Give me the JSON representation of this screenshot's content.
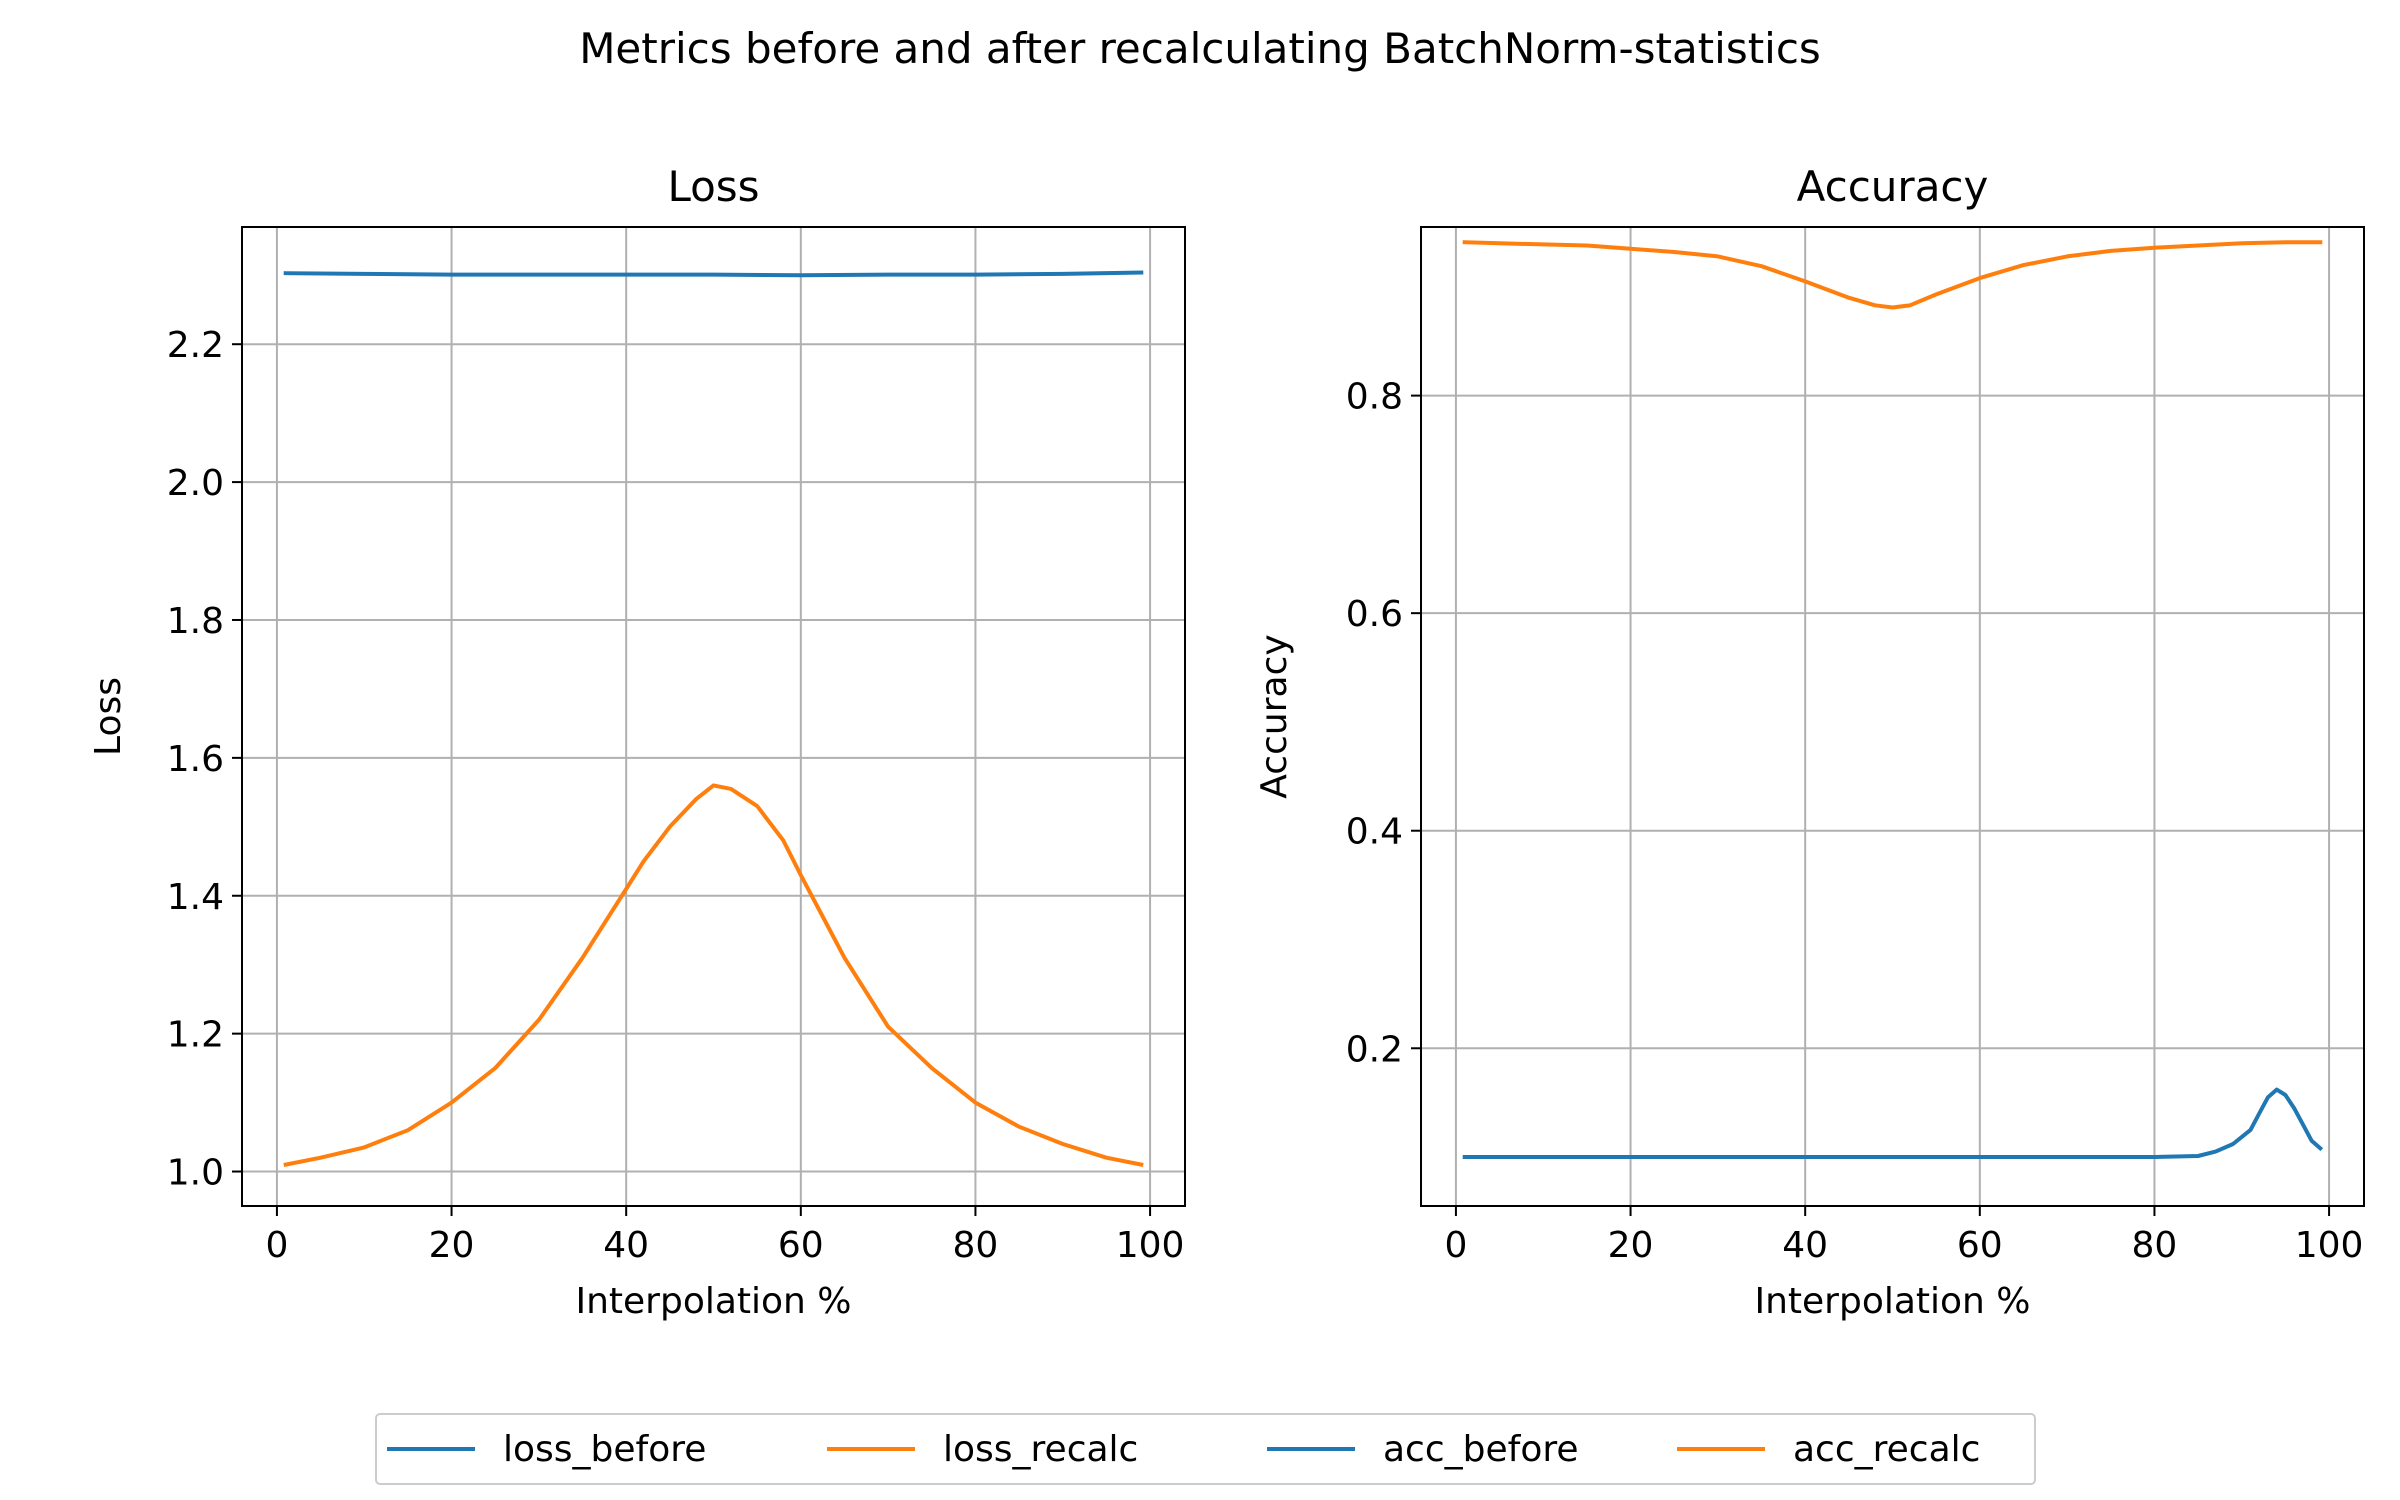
{
  "figure": {
    "suptitle": "Metrics before and after recalculating BatchNorm-statistics"
  },
  "colors": {
    "blue": "#1f77b4",
    "orange": "#ff7f0e",
    "grid": "#b0b0b0"
  },
  "legend": {
    "placement": "bottom-center",
    "items": [
      {
        "label": "loss_before",
        "color": "#1f77b4"
      },
      {
        "label": "loss_recalc",
        "color": "#ff7f0e"
      },
      {
        "label": "acc_before",
        "color": "#1f77b4"
      },
      {
        "label": "acc_recalc",
        "color": "#ff7f0e"
      }
    ]
  },
  "chart_data": [
    {
      "type": "line",
      "title": "Loss",
      "xlabel": "Interpolation %",
      "ylabel": "Loss",
      "xlim": [
        -4,
        104
      ],
      "ylim": [
        0.95,
        2.37
      ],
      "xticks": [
        0,
        20,
        40,
        60,
        80,
        100
      ],
      "xtick_labels": [
        "0",
        "20",
        "40",
        "60",
        "80",
        "100"
      ],
      "yticks": [
        1.0,
        1.2,
        1.4,
        1.6,
        1.8,
        2.0,
        2.2
      ],
      "ytick_labels": [
        "1.0",
        "1.2",
        "1.4",
        "1.6",
        "1.8",
        "2.0",
        "2.2"
      ],
      "grid": true,
      "series": [
        {
          "name": "loss_before",
          "color": "#1f77b4",
          "x": [
            1,
            10,
            20,
            30,
            40,
            50,
            60,
            70,
            80,
            90,
            99
          ],
          "y": [
            2.303,
            2.302,
            2.301,
            2.301,
            2.301,
            2.301,
            2.3,
            2.301,
            2.301,
            2.302,
            2.304
          ]
        },
        {
          "name": "loss_recalc",
          "color": "#ff7f0e",
          "x": [
            1,
            5,
            10,
            15,
            20,
            25,
            30,
            35,
            40,
            42,
            45,
            48,
            50,
            52,
            55,
            58,
            60,
            65,
            70,
            75,
            80,
            85,
            90,
            95,
            99
          ],
          "y": [
            1.01,
            1.02,
            1.035,
            1.06,
            1.1,
            1.15,
            1.22,
            1.31,
            1.41,
            1.45,
            1.5,
            1.54,
            1.56,
            1.555,
            1.53,
            1.48,
            1.43,
            1.31,
            1.21,
            1.15,
            1.1,
            1.065,
            1.04,
            1.02,
            1.01
          ]
        }
      ]
    },
    {
      "type": "line",
      "title": "Accuracy",
      "xlabel": "Interpolation %",
      "ylabel": "Accuracy",
      "xlim": [
        -4,
        104
      ],
      "ylim": [
        0.055,
        0.955
      ],
      "xticks": [
        0,
        20,
        40,
        60,
        80,
        100
      ],
      "xtick_labels": [
        "0",
        "20",
        "40",
        "60",
        "80",
        "100"
      ],
      "yticks": [
        0.2,
        0.4,
        0.6,
        0.8
      ],
      "ytick_labels": [
        "0.2",
        "0.4",
        "0.6",
        "0.8"
      ],
      "grid": true,
      "series": [
        {
          "name": "acc_before",
          "color": "#1f77b4",
          "x": [
            1,
            10,
            20,
            40,
            60,
            80,
            85,
            87,
            89,
            91,
            92,
            93,
            94,
            95,
            96,
            97,
            98,
            99
          ],
          "y": [
            0.1,
            0.1,
            0.1,
            0.1,
            0.1,
            0.1,
            0.101,
            0.105,
            0.112,
            0.125,
            0.14,
            0.155,
            0.162,
            0.157,
            0.145,
            0.13,
            0.115,
            0.108
          ]
        },
        {
          "name": "acc_recalc",
          "color": "#ff7f0e",
          "x": [
            1,
            5,
            10,
            15,
            20,
            25,
            30,
            35,
            40,
            45,
            48,
            50,
            52,
            55,
            60,
            65,
            70,
            75,
            80,
            85,
            90,
            95,
            99
          ],
          "y": [
            0.941,
            0.94,
            0.939,
            0.938,
            0.935,
            0.932,
            0.928,
            0.919,
            0.905,
            0.89,
            0.883,
            0.881,
            0.883,
            0.893,
            0.908,
            0.92,
            0.928,
            0.933,
            0.936,
            0.938,
            0.94,
            0.941,
            0.941
          ]
        }
      ]
    }
  ]
}
